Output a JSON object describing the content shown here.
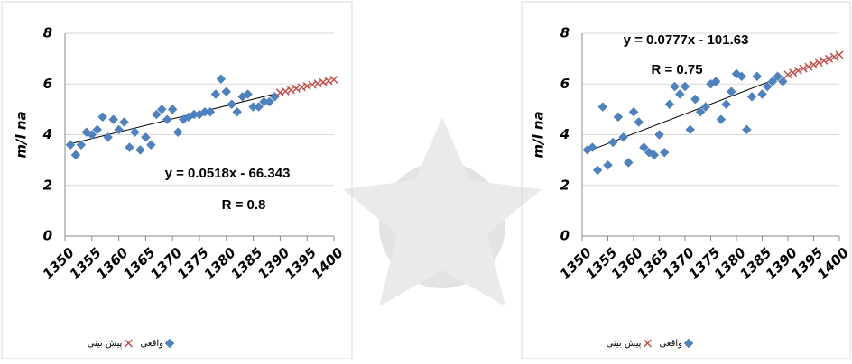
{
  "chart_data": [
    {
      "type": "scatter",
      "ylabel": "m/l na",
      "xlim": [
        1350,
        1400
      ],
      "xticks": [
        1350,
        1355,
        1360,
        1365,
        1370,
        1375,
        1380,
        1385,
        1390,
        1395,
        1400
      ],
      "ylim": [
        0,
        8
      ],
      "yticks": [
        0,
        2,
        4,
        6,
        8
      ],
      "grid": true,
      "annotations": [
        "y = 0.0518x - 66.343",
        "R = 0.8"
      ],
      "series": [
        {
          "name": "واقعی",
          "color": "#4f81bd",
          "marker": "diamond",
          "x": [
            1351,
            1352,
            1353,
            1354,
            1355,
            1356,
            1357,
            1358,
            1359,
            1360,
            1361,
            1362,
            1363,
            1364,
            1365,
            1366,
            1367,
            1368,
            1369,
            1370,
            1371,
            1372,
            1373,
            1374,
            1375,
            1376,
            1377,
            1378,
            1379,
            1380,
            1381,
            1382,
            1383,
            1384,
            1385,
            1386,
            1387,
            1388,
            1389
          ],
          "values": [
            3.6,
            3.2,
            3.6,
            4.1,
            4.0,
            4.2,
            4.7,
            3.9,
            4.6,
            4.2,
            4.5,
            3.5,
            4.1,
            3.4,
            3.9,
            3.6,
            4.8,
            5.0,
            4.6,
            5.0,
            4.1,
            4.6,
            4.7,
            4.8,
            4.8,
            4.9,
            4.9,
            5.6,
            6.2,
            5.7,
            5.2,
            4.9,
            5.5,
            5.6,
            5.1,
            5.1,
            5.3,
            5.3,
            5.5
          ]
        },
        {
          "name": "پیش بینی",
          "color": "#c0504d",
          "marker": "x",
          "x": [
            1390,
            1391,
            1392,
            1393,
            1394,
            1395,
            1396,
            1397,
            1398,
            1399,
            1400
          ],
          "values": [
            5.66,
            5.71,
            5.76,
            5.82,
            5.87,
            5.92,
            5.97,
            6.02,
            6.07,
            6.12,
            6.17
          ]
        }
      ],
      "trendline": {
        "color": "#000000",
        "x": [
          1351,
          1389
        ],
        "values": [
          3.64,
          5.61
        ]
      }
    },
    {
      "type": "scatter",
      "ylabel": "m/l na",
      "xlim": [
        1350,
        1400
      ],
      "xticks": [
        1350,
        1355,
        1360,
        1365,
        1370,
        1375,
        1380,
        1385,
        1390,
        1395,
        1400
      ],
      "ylim": [
        0,
        8
      ],
      "yticks": [
        0,
        2,
        4,
        6,
        8
      ],
      "grid": true,
      "annotations": [
        "y = 0.0777x - 101.63",
        "R = 0.75"
      ],
      "series": [
        {
          "name": "واقعی",
          "color": "#4f81bd",
          "marker": "diamond",
          "x": [
            1351,
            1352,
            1353,
            1354,
            1355,
            1356,
            1357,
            1358,
            1359,
            1360,
            1361,
            1362,
            1363,
            1364,
            1365,
            1366,
            1367,
            1368,
            1369,
            1370,
            1371,
            1372,
            1373,
            1374,
            1375,
            1376,
            1377,
            1378,
            1379,
            1380,
            1381,
            1382,
            1383,
            1384,
            1385,
            1386,
            1387,
            1388,
            1389
          ],
          "values": [
            3.4,
            3.5,
            2.6,
            5.1,
            2.8,
            3.7,
            4.7,
            3.9,
            2.9,
            4.9,
            4.5,
            3.5,
            3.3,
            3.2,
            4.0,
            3.3,
            5.2,
            5.9,
            5.6,
            5.9,
            4.2,
            5.4,
            4.9,
            5.1,
            6.0,
            6.1,
            4.6,
            5.2,
            5.7,
            6.4,
            6.3,
            4.2,
            5.5,
            6.3,
            5.6,
            5.9,
            6.1,
            6.3,
            6.1
          ]
        },
        {
          "name": "پیش بینی",
          "color": "#c0504d",
          "marker": "x",
          "x": [
            1390,
            1391,
            1392,
            1393,
            1394,
            1395,
            1396,
            1397,
            1398,
            1399,
            1400
          ],
          "values": [
            6.37,
            6.45,
            6.53,
            6.61,
            6.68,
            6.76,
            6.84,
            6.92,
            6.99,
            7.07,
            7.15
          ]
        }
      ],
      "trendline": {
        "color": "#000000",
        "x": [
          1351,
          1389
        ],
        "values": [
          3.34,
          6.3
        ]
      }
    }
  ]
}
